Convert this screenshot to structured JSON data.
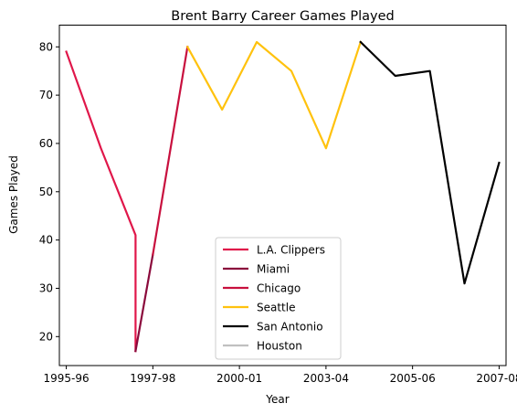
{
  "chart_data": {
    "type": "line",
    "title": "Brent Barry Career Games Played",
    "xlabel": "Year",
    "ylabel": "Games Played",
    "xlim": [
      1995.55,
      2008.45
    ],
    "ylim": [
      14,
      84.5
    ],
    "x_ticks": [
      {
        "value": 1995.75,
        "label": "1995-96"
      },
      {
        "value": 1998.25,
        "label": "1997-98"
      },
      {
        "value": 2000.75,
        "label": "2000-01"
      },
      {
        "value": 2003.25,
        "label": "2003-04"
      },
      {
        "value": 2005.75,
        "label": "2005-06"
      },
      {
        "value": 2008.25,
        "label": "2007-08"
      }
    ],
    "y_ticks": [
      20,
      30,
      40,
      50,
      60,
      70,
      80
    ],
    "grid": false,
    "legend": "lower-center",
    "series": [
      {
        "name": "L.A. Clippers",
        "color": "#e0174a",
        "points": [
          [
            1995.75,
            79
          ],
          [
            1996.75,
            59
          ],
          [
            1997.75,
            41
          ],
          [
            1997.75,
            17
          ]
        ]
      },
      {
        "name": "Miami",
        "color": "#8b0a3c",
        "points": [
          [
            1997.75,
            17
          ],
          [
            1998.25,
            37
          ]
        ]
      },
      {
        "name": "Chicago",
        "color": "#c8103e",
        "points": [
          [
            1998.25,
            37
          ],
          [
            1999.25,
            80
          ]
        ]
      },
      {
        "name": "Seattle",
        "color": "#ffc20e",
        "points": [
          [
            1999.25,
            80
          ],
          [
            2000.25,
            67
          ],
          [
            2001.25,
            81
          ],
          [
            2002.25,
            75
          ],
          [
            2003.25,
            59
          ],
          [
            2004.25,
            81
          ]
        ]
      },
      {
        "name": "San Antonio",
        "color": "#000000",
        "points": [
          [
            2004.25,
            81
          ],
          [
            2005.25,
            74
          ],
          [
            2006.25,
            75
          ],
          [
            2007.25,
            31
          ],
          [
            2008.25,
            56
          ]
        ]
      },
      {
        "name": "Houston",
        "color": "#c0c0c0",
        "points": []
      }
    ]
  }
}
